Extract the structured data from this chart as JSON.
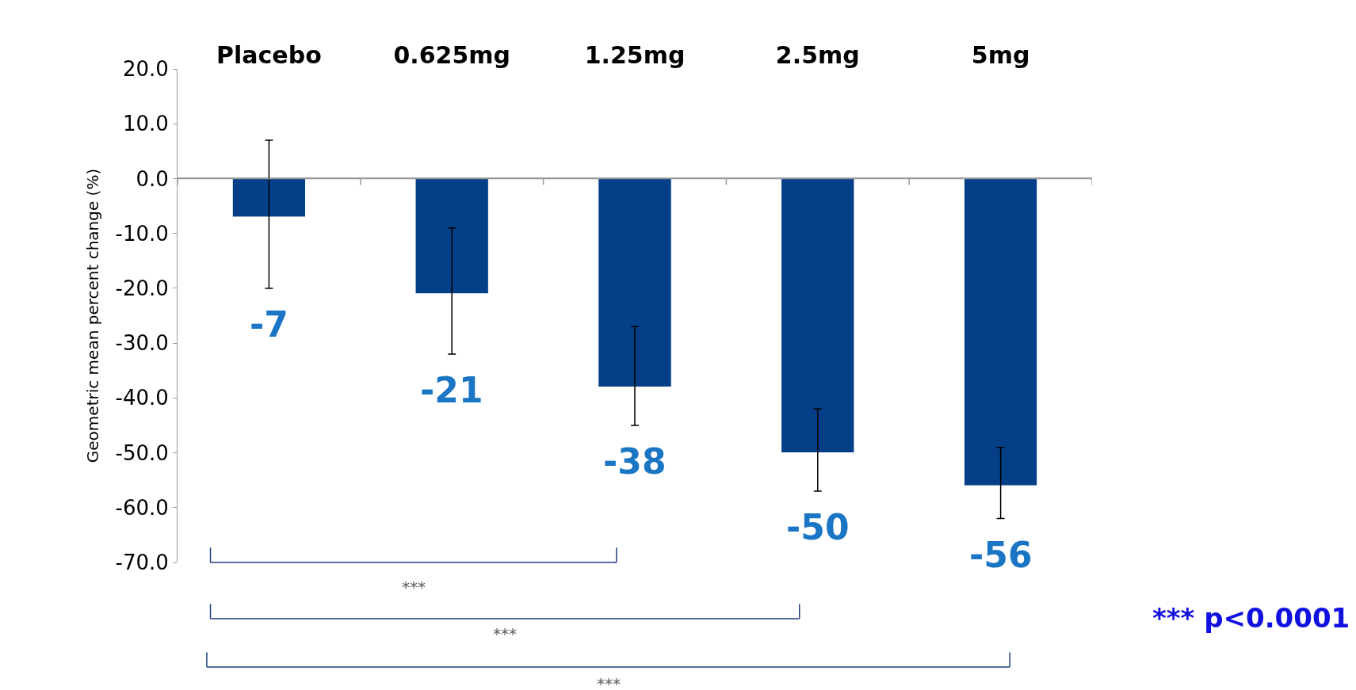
{
  "chart_data": {
    "type": "bar",
    "ylabel": "Geometric mean percent change (%)",
    "categories": [
      "Placebo",
      "0.625mg",
      "1.25mg",
      "2.5mg",
      "5mg"
    ],
    "values": [
      -7,
      -21,
      -38,
      -50,
      -56
    ],
    "errors": [
      [
        -20,
        7
      ],
      [
        -32,
        -9
      ],
      [
        -45,
        -27
      ],
      [
        -57,
        -42
      ],
      [
        -62,
        -49
      ]
    ],
    "color": "#043f87",
    "data_labels": true,
    "ylim": [
      -70,
      20
    ],
    "yticks": [
      {
        "value": 20,
        "label": "20.0"
      },
      {
        "value": 10,
        "label": "10.0"
      },
      {
        "value": 0,
        "label": "0.0"
      },
      {
        "value": -10,
        "label": "-10.0"
      },
      {
        "value": -20,
        "label": "-20.0"
      },
      {
        "value": -30,
        "label": "-30.0"
      },
      {
        "value": -40,
        "label": "-40.0"
      },
      {
        "value": -50,
        "label": "-50.0"
      },
      {
        "value": -60,
        "label": "-60.0"
      },
      {
        "value": -70,
        "label": "-70.0"
      }
    ],
    "legend": false,
    "annotations": [
      "***",
      "***",
      "***",
      "*** p<0.0001"
    ]
  }
}
